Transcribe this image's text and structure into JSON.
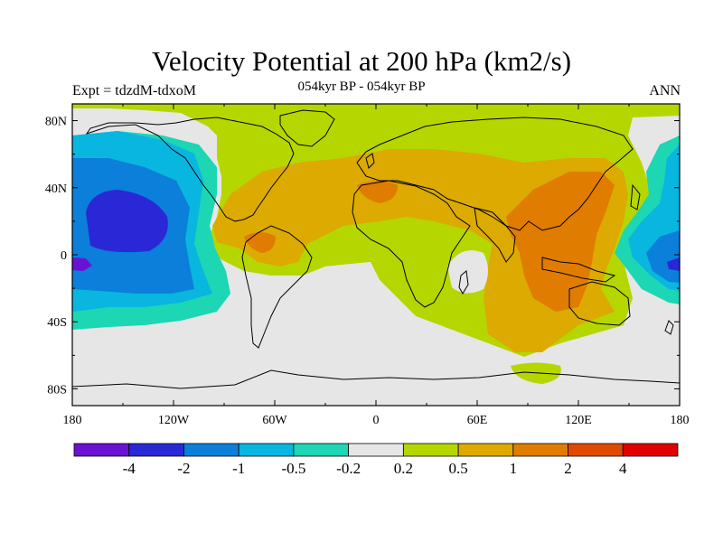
{
  "title": "Velocity Potential at 200 hPa (km2/s)",
  "subtitle": "054kyr BP - 054kyr BP",
  "left_label": "Expt = tdzdM-tdxoM",
  "right_label": "ANN",
  "map": {
    "projection": "cylindrical equidistant",
    "lon_range": [
      -180,
      180
    ],
    "lat_range": [
      -90,
      90
    ],
    "lon_ticks": [
      "180",
      "120W",
      "60W",
      "0",
      "60E",
      "120E",
      "180"
    ],
    "lat_ticks": [
      "80N",
      "40N",
      "0",
      "40S",
      "80S"
    ]
  },
  "colorbar": {
    "labels": [
      "-4",
      "-2",
      "-1",
      "-0.5",
      "-0.2",
      "0.2",
      "0.5",
      "1",
      "2",
      "4"
    ],
    "colors": [
      "#6a12d4",
      "#2a28d6",
      "#0b7fd9",
      "#08b6e0",
      "#1cd6b4",
      "#e6e6e6",
      "#b6d600",
      "#dcaa00",
      "#e07c00",
      "#e04a00",
      "#e00000"
    ]
  },
  "colors": {
    "background": "#e6e6e6",
    "coastline": "#000000"
  }
}
